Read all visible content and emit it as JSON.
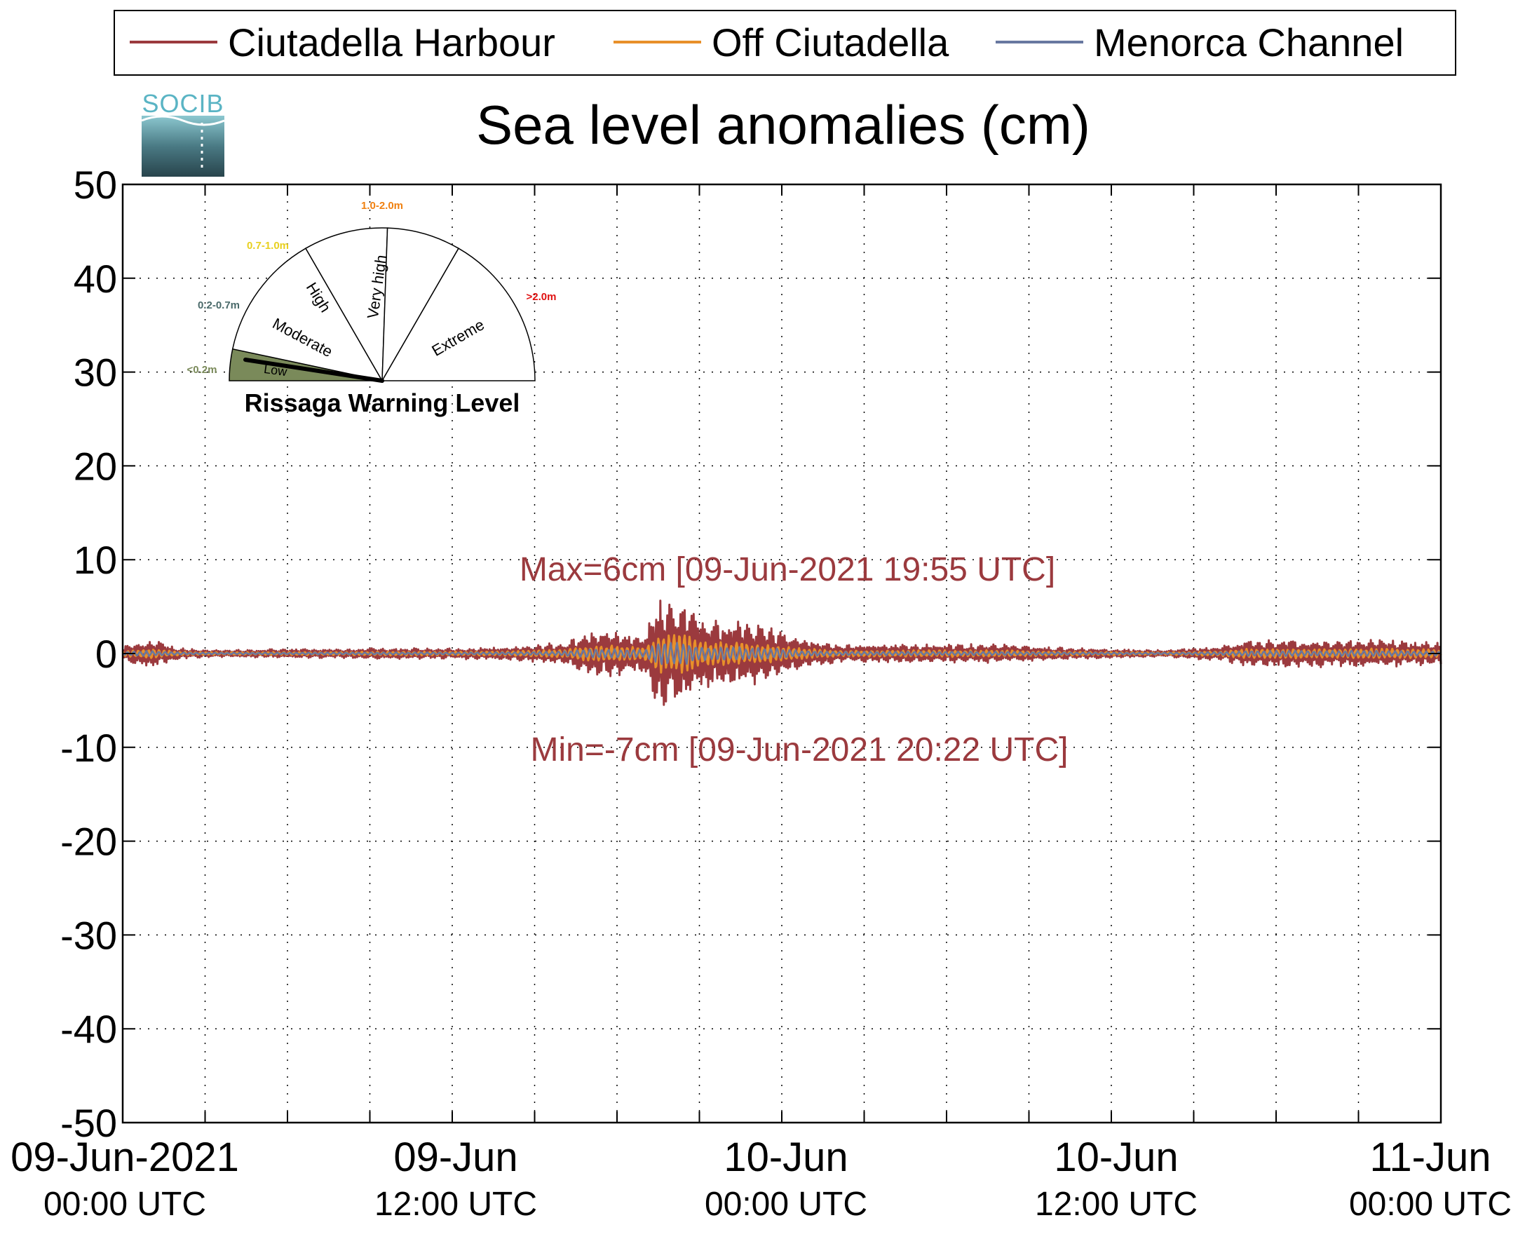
{
  "chart_data": {
    "type": "line",
    "title": "Sea level anomalies (cm)",
    "ylim": [
      -50,
      50
    ],
    "yticks": [
      50,
      40,
      30,
      20,
      10,
      0,
      -10,
      -20,
      -30,
      -40,
      -50
    ],
    "xlim": [
      "2021-06-09T00:00Z",
      "2021-06-11T00:00Z"
    ],
    "grid": true,
    "grid_style": "dotted",
    "legend_position": "top",
    "xticks": [
      {
        "date": "09-Jun-2021",
        "time": "00:00 UTC"
      },
      {
        "date": "09-Jun",
        "time": "12:00 UTC"
      },
      {
        "date": "10-Jun",
        "time": "00:00 UTC"
      },
      {
        "date": "10-Jun",
        "time": "12:00 UTC"
      },
      {
        "date": "11-Jun",
        "time": "00:00 UTC"
      }
    ],
    "series": [
      {
        "name": "Ciutadella Harbour",
        "color": "#9b3a3e"
      },
      {
        "name": "Off Ciutadella",
        "color": "#e8902a"
      },
      {
        "name": "Menorca Channel",
        "color": "#6878a0"
      }
    ],
    "envelope_series_note": "",
    "ciutadella_envelope": {
      "hours": [
        0,
        1,
        2,
        3,
        4,
        6,
        8,
        10,
        12,
        14,
        16,
        17,
        18,
        19,
        19.5,
        20,
        20.4,
        21,
        22,
        23,
        24,
        25,
        26,
        28,
        30,
        32,
        34,
        36,
        38,
        40,
        41,
        42,
        44,
        46,
        48
      ],
      "amplitude_cm": [
        0.8,
        1.6,
        0.6,
        0.4,
        0.4,
        0.5,
        0.5,
        0.6,
        0.6,
        0.7,
        1.2,
        2.5,
        2.5,
        2.0,
        6.0,
        6.0,
        6.5,
        4.0,
        3.5,
        3.5,
        2.5,
        1.5,
        1.0,
        1.0,
        1.0,
        1.0,
        0.7,
        0.5,
        0.4,
        0.8,
        1.5,
        1.5,
        1.5,
        1.5,
        1.2
      ]
    },
    "annotations": {
      "max": "Max=6cm [09-Jun-2021 19:55 UTC]",
      "min": "Min=-7cm [09-Jun-2021 20:22 UTC]"
    }
  },
  "logo": {
    "text": "SOCIB"
  },
  "warning_gauge": {
    "title": "Rissaga Warning Level",
    "current_level": "Low",
    "sectors": [
      {
        "label": "Low",
        "range": "<0.2m",
        "range_color": "#7a8a5a",
        "fill": "#7a8a5a"
      },
      {
        "label": "Moderate",
        "range": "0.2-0.7m",
        "range_color": "#4a6a6a",
        "fill": "#ffffff"
      },
      {
        "label": "High",
        "range": "0.7-1.0m",
        "range_color": "#e8d020",
        "fill": "#ffffff"
      },
      {
        "label": "Very high",
        "range": "1.0-2.0m",
        "range_color": "#f08010",
        "fill": "#ffffff"
      },
      {
        "label": "Extreme",
        "range": ">2.0m",
        "range_color": "#e01010",
        "fill": "#ffffff"
      }
    ]
  }
}
